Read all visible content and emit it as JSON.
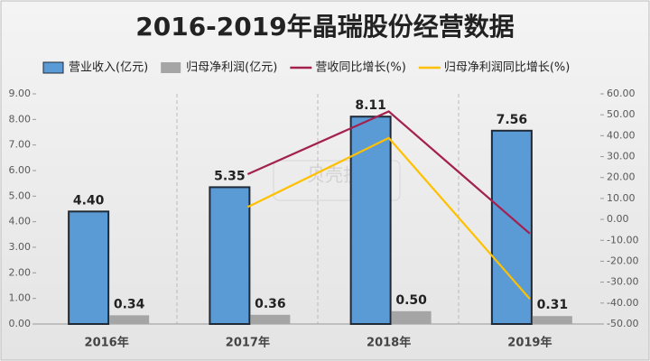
{
  "chart_data": {
    "type": "bar-line",
    "title": "2016-2019年晶瑞股份经营数据",
    "watermark": "贝壳投研",
    "categories": [
      "2016年",
      "2017年",
      "2018年",
      "2019年"
    ],
    "series": [
      {
        "name": "营业收入(亿元)",
        "type": "bar",
        "color": "#5b9bd5",
        "values": [
          4.4,
          5.35,
          8.11,
          7.56
        ],
        "value_labels": [
          "4.40",
          "5.35",
          "8.11",
          "7.56"
        ]
      },
      {
        "name": "归母净利润(亿元)",
        "type": "bar",
        "color": "#a5a5a5",
        "values": [
          0.34,
          0.36,
          0.5,
          0.31
        ],
        "value_labels": [
          "0.34",
          "0.36",
          "0.50",
          "0.31"
        ]
      },
      {
        "name": "营收同比增长(%)",
        "type": "line",
        "axis": "y2",
        "color": "#a3214f",
        "values": [
          null,
          21.6,
          51.6,
          -6.8
        ]
      },
      {
        "name": "归母净利润同比增长(%)",
        "type": "line",
        "axis": "y2",
        "color": "#ffc000",
        "values": [
          null,
          5.9,
          38.9,
          -38
        ]
      }
    ],
    "ylim": [
      0,
      9
    ],
    "yticks": [
      {
        "value": 0,
        "label": "0.00"
      },
      {
        "value": 1,
        "label": "1.00"
      },
      {
        "value": 2,
        "label": "2.00"
      },
      {
        "value": 3,
        "label": "3.00"
      },
      {
        "value": 4,
        "label": "4.00"
      },
      {
        "value": 5,
        "label": "5.00"
      },
      {
        "value": 6,
        "label": "6.00"
      },
      {
        "value": 7,
        "label": "7.00"
      },
      {
        "value": 8,
        "label": "8.00"
      },
      {
        "value": 9,
        "label": "9.00"
      }
    ],
    "y2lim": [
      -50,
      60
    ],
    "y2ticks": [
      {
        "value": -50,
        "label": "-50.00"
      },
      {
        "value": -40,
        "label": "-40.00"
      },
      {
        "value": -30,
        "label": "-30.00"
      },
      {
        "value": -20,
        "label": "-20.00"
      },
      {
        "value": -10,
        "label": "-10.00"
      },
      {
        "value": 0,
        "label": "0.00"
      },
      {
        "value": 10,
        "label": "10.00"
      },
      {
        "value": 20,
        "label": "20.00"
      },
      {
        "value": 30,
        "label": "30.00"
      },
      {
        "value": 40,
        "label": "40.00"
      },
      {
        "value": 50,
        "label": "50.00"
      },
      {
        "value": 60,
        "label": "60.00"
      }
    ],
    "grid": false,
    "legend": "top"
  }
}
